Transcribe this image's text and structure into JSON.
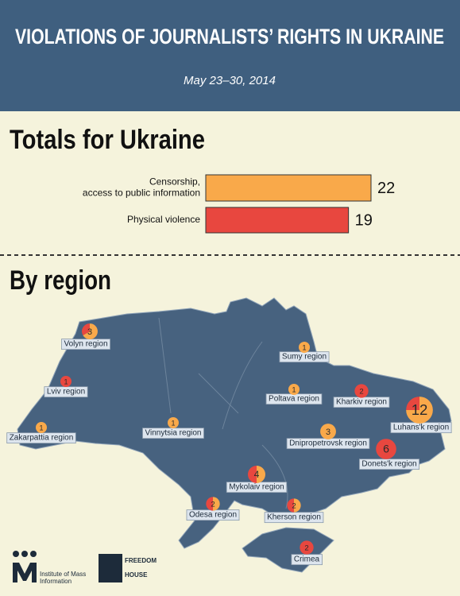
{
  "header": {
    "title": "VIOLATIONS OF JOURNALISTS’ RIGHTS IN UKRAINE",
    "subtitle": "May 23–30, 2014"
  },
  "chart_data": [
    {
      "type": "bar",
      "title": "Totals for Ukraine",
      "categories": [
        "Censorship,\naccess to public information",
        "Physical violence"
      ],
      "values": [
        22,
        19
      ],
      "colors": [
        "#f9a94a",
        "#e8473f"
      ]
    },
    {
      "type": "map-pie",
      "title": "By region",
      "categories": [
        "Volyn region",
        "Sumy region",
        "Lviv region",
        "Kharkiv region",
        "Poltava region",
        "Luhans'k region",
        "Zakarpattia region",
        "Vinnytsia region",
        "Dnipropetrovsk region",
        "Donets'k region",
        "Mykolaiv region",
        "Odesa region",
        "Kherson region",
        "Crimea"
      ],
      "values": [
        3,
        1,
        1,
        2,
        1,
        12,
        1,
        1,
        3,
        6,
        4,
        2,
        2,
        2
      ],
      "series": [
        {
          "color": "#f9a94a",
          "values": [
            2,
            1,
            0,
            0,
            1,
            9,
            1,
            1,
            3,
            0,
            2,
            1,
            1,
            0
          ]
        },
        {
          "color": "#e8473f",
          "values": [
            1,
            0,
            1,
            2,
            0,
            3,
            0,
            0,
            0,
            6,
            2,
            1,
            1,
            2
          ]
        }
      ]
    }
  ],
  "footer": {
    "institute": "Institute of Mass Information",
    "freedom_house": "FREEDOM HOUSE"
  }
}
